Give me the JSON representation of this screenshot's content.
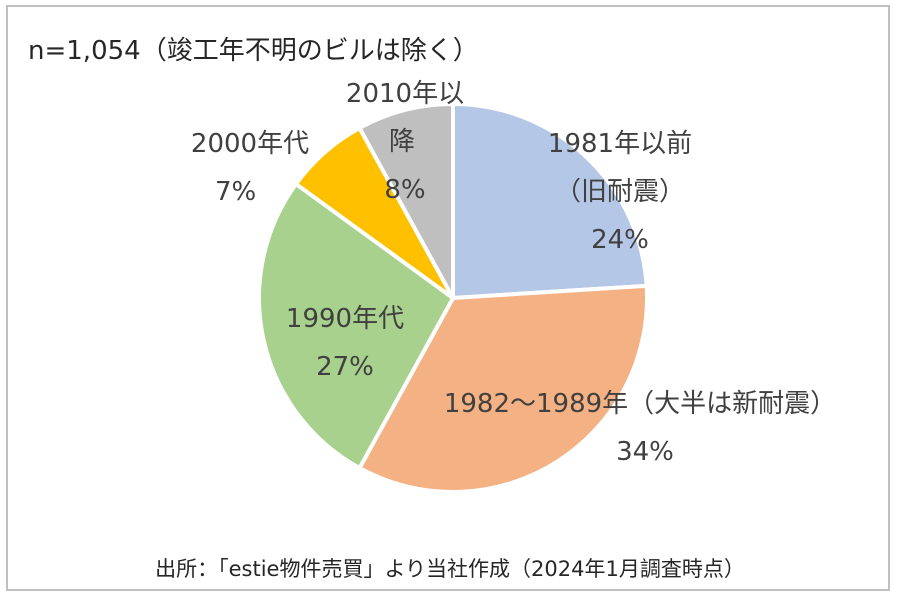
{
  "note": "n=1,054（竣工年不明のビルは除く）",
  "source": "出所：「estie物件売買」より当社作成（2024年1月調査時点）",
  "chart_data": {
    "type": "pie",
    "slices": [
      {
        "label": "1981年以前（旧耐震）",
        "label_lines": [
          "1981年以前",
          "（旧耐震）"
        ],
        "pct_label": "24%",
        "value": 24,
        "color": "#b4c7e7"
      },
      {
        "label": "1982～1989年（大半は新耐震）",
        "label_lines": [
          "1982～1989年（大半は新耐震）"
        ],
        "pct_label": "34%",
        "value": 34,
        "color": "#f4b183"
      },
      {
        "label": "1990年代",
        "label_lines": [
          "1990年代"
        ],
        "pct_label": "27%",
        "value": 27,
        "color": "#a9d18e"
      },
      {
        "label": "2000年代",
        "label_lines": [
          "2000年代"
        ],
        "pct_label": "7%",
        "value": 7,
        "color": "#ffc000"
      },
      {
        "label": "2010年以降",
        "label_lines": [
          "2010年以",
          "降"
        ],
        "pct_label": "8%",
        "value": 8,
        "color": "#bfbfbf"
      }
    ]
  }
}
